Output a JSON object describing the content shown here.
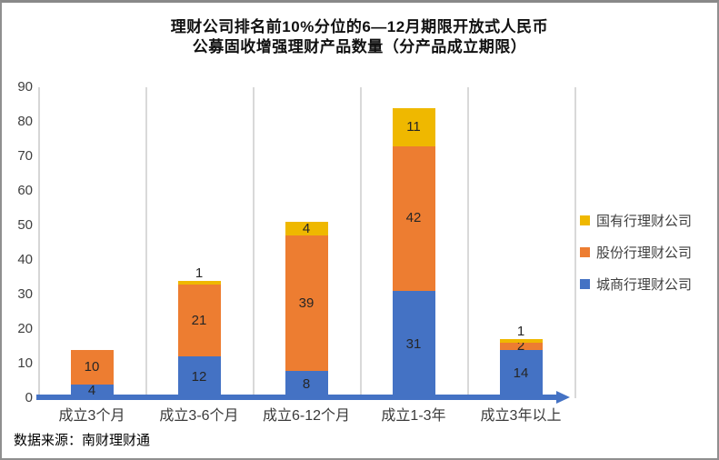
{
  "title": {
    "line1": "理财公司排名前10%分位的6—12月期限开放式人民币",
    "line2": "公募固收增强理财产品数量（分产品成立期限）"
  },
  "source": "数据来源：南财理财通",
  "colors": {
    "city_bank_blue": "#4472C4",
    "joint_stock_orange": "#ED7D31",
    "state_owned_gold": "#EFB800",
    "axis_baseline": "#4472C4",
    "gridline": "#D9D9D9",
    "frame_border": "#8F8F8F"
  },
  "chart_data": {
    "type": "bar",
    "stacked": true,
    "title": "理财公司排名前10%分位的6—12月期限开放式人民币公募固收增强理财产品数量（分产品成立期限）",
    "categories": [
      "成立3个月",
      "成立3-6个月",
      "成立6-12个月",
      "成立1-3年",
      "成立3年以上"
    ],
    "series": [
      {
        "name": "城商行理财公司",
        "color": "#4472C4",
        "values": [
          4,
          12,
          8,
          31,
          14
        ]
      },
      {
        "name": "股份行理财公司",
        "color": "#ED7D31",
        "values": [
          10,
          21,
          39,
          42,
          2
        ]
      },
      {
        "name": "国有行理财公司",
        "color": "#EFB800",
        "values": [
          0,
          1,
          4,
          11,
          1
        ]
      }
    ],
    "totals": [
      14,
      34,
      51,
      84,
      17
    ],
    "y_axis": {
      "min": 0,
      "max": 90,
      "step": 10,
      "tick_labels": [
        "0",
        "10",
        "20",
        "30",
        "40",
        "50",
        "60",
        "70",
        "80",
        "90"
      ]
    },
    "grid": "vertical-category-separators-only",
    "legend_position": "right",
    "legend_order_top_to_bottom": [
      "国有行理财公司",
      "股份行理财公司",
      "城商行理财公司"
    ],
    "data_labels": true,
    "x_axis_style": "thick-blue-line-with-right-arrow"
  }
}
